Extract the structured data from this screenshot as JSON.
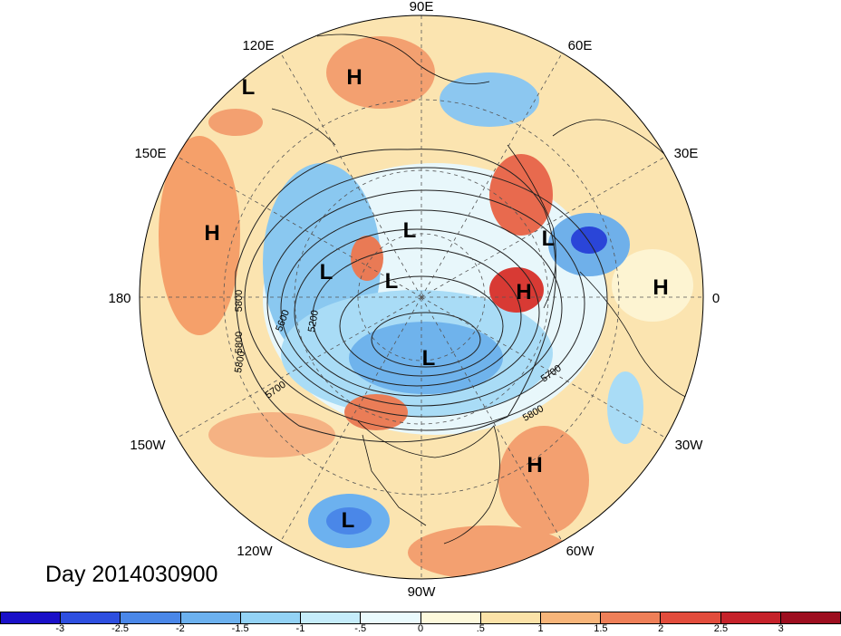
{
  "title": "Day 2014030900",
  "longitude_labels": [
    "90E",
    "60E",
    "120E",
    "30E",
    "150E",
    "180",
    "0",
    "150W",
    "30W",
    "120W",
    "60W",
    "90W"
  ],
  "pressure_centers": [
    {
      "type": "L",
      "lon": "120E",
      "lat": "~"
    },
    {
      "type": "H"
    },
    {
      "type": "H"
    },
    {
      "type": "L"
    },
    {
      "type": "L"
    },
    {
      "type": "L"
    },
    {
      "type": "L"
    },
    {
      "type": "H"
    },
    {
      "type": "H"
    },
    {
      "type": "L"
    },
    {
      "type": "H"
    },
    {
      "type": "L"
    }
  ],
  "contour_labels": [
    "5800",
    "5600",
    "5200",
    "5800",
    "5800",
    "5700",
    "5700",
    "5800"
  ],
  "colorbar": {
    "ticks": [
      "-3",
      "-2.5",
      "-2",
      "-1.5",
      "-1",
      "-.5",
      "0",
      ".5",
      "1",
      "1.5",
      "2",
      "2.5",
      "3"
    ],
    "colors": [
      "#1a10c8",
      "#2e4fe0",
      "#4a87e8",
      "#6cb1ef",
      "#93d2f5",
      "#c5ecfa",
      "#eafafd",
      "#fdf9dc",
      "#fbe2a8",
      "#f7b57a",
      "#ee7f58",
      "#e24c3c",
      "#c5222a",
      "#9d0e1f"
    ]
  }
}
